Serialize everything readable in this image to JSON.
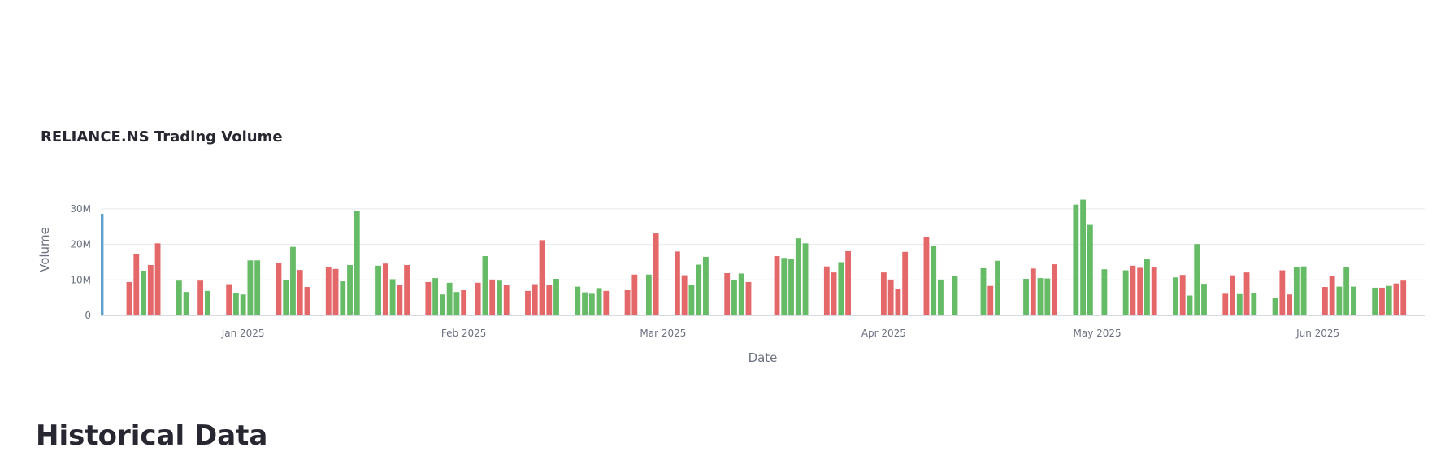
{
  "heading": "Historical Data",
  "colors": {
    "up": "#66bb66",
    "down": "#e46869",
    "first": "#5fa2ce",
    "grid": "#e8eaee",
    "axis": "#d6dae1"
  },
  "chart_data": {
    "type": "bar",
    "title": "RELIANCE.NS Trading Volume",
    "xlabel": "Date",
    "ylabel": "Volume",
    "ylim": [
      0,
      32500000
    ],
    "xlim": [
      "2024-12-12",
      "2025-06-16"
    ],
    "yticks": [
      {
        "value": 0,
        "label": "0"
      },
      {
        "value": 10000000,
        "label": "10M"
      },
      {
        "value": 20000000,
        "label": "20M"
      },
      {
        "value": 30000000,
        "label": "30M"
      }
    ],
    "xticks": [
      {
        "date": "2025-01-01",
        "label": "Jan 2025"
      },
      {
        "date": "2025-02-01",
        "label": "Feb 2025"
      },
      {
        "date": "2025-03-01",
        "label": "Mar 2025"
      },
      {
        "date": "2025-04-01",
        "label": "Apr 2025"
      },
      {
        "date": "2025-05-01",
        "label": "May 2025"
      },
      {
        "date": "2025-06-01",
        "label": "Jun 2025"
      }
    ],
    "grid": true,
    "legend": "none",
    "bars": [
      {
        "date": "2024-12-12",
        "value": 28600000,
        "dir": "first"
      },
      {
        "date": "2024-12-16",
        "value": 9400000,
        "dir": "down"
      },
      {
        "date": "2024-12-17",
        "value": 17400000,
        "dir": "down"
      },
      {
        "date": "2024-12-18",
        "value": 12600000,
        "dir": "up"
      },
      {
        "date": "2024-12-19",
        "value": 14200000,
        "dir": "down"
      },
      {
        "date": "2024-12-20",
        "value": 20300000,
        "dir": "down"
      },
      {
        "date": "2024-12-23",
        "value": 9800000,
        "dir": "up"
      },
      {
        "date": "2024-12-24",
        "value": 6600000,
        "dir": "up"
      },
      {
        "date": "2024-12-26",
        "value": 9800000,
        "dir": "down"
      },
      {
        "date": "2024-12-27",
        "value": 6900000,
        "dir": "up"
      },
      {
        "date": "2024-12-30",
        "value": 8800000,
        "dir": "down"
      },
      {
        "date": "2024-12-31",
        "value": 6300000,
        "dir": "up"
      },
      {
        "date": "2025-01-01",
        "value": 5900000,
        "dir": "up"
      },
      {
        "date": "2025-01-02",
        "value": 15500000,
        "dir": "up"
      },
      {
        "date": "2025-01-03",
        "value": 15500000,
        "dir": "up"
      },
      {
        "date": "2025-01-06",
        "value": 14800000,
        "dir": "down"
      },
      {
        "date": "2025-01-07",
        "value": 10000000,
        "dir": "up"
      },
      {
        "date": "2025-01-08",
        "value": 19300000,
        "dir": "up"
      },
      {
        "date": "2025-01-09",
        "value": 12800000,
        "dir": "down"
      },
      {
        "date": "2025-01-10",
        "value": 8000000,
        "dir": "down"
      },
      {
        "date": "2025-01-13",
        "value": 13700000,
        "dir": "down"
      },
      {
        "date": "2025-01-14",
        "value": 13100000,
        "dir": "down"
      },
      {
        "date": "2025-01-15",
        "value": 9600000,
        "dir": "up"
      },
      {
        "date": "2025-01-16",
        "value": 14200000,
        "dir": "up"
      },
      {
        "date": "2025-01-17",
        "value": 29400000,
        "dir": "up"
      },
      {
        "date": "2025-01-20",
        "value": 14000000,
        "dir": "up"
      },
      {
        "date": "2025-01-21",
        "value": 14600000,
        "dir": "down"
      },
      {
        "date": "2025-01-22",
        "value": 10200000,
        "dir": "up"
      },
      {
        "date": "2025-01-23",
        "value": 8600000,
        "dir": "down"
      },
      {
        "date": "2025-01-24",
        "value": 14200000,
        "dir": "down"
      },
      {
        "date": "2025-01-27",
        "value": 9400000,
        "dir": "down"
      },
      {
        "date": "2025-01-28",
        "value": 10500000,
        "dir": "up"
      },
      {
        "date": "2025-01-29",
        "value": 5900000,
        "dir": "up"
      },
      {
        "date": "2025-01-30",
        "value": 9200000,
        "dir": "up"
      },
      {
        "date": "2025-01-31",
        "value": 6600000,
        "dir": "up"
      },
      {
        "date": "2025-02-01",
        "value": 7100000,
        "dir": "down"
      },
      {
        "date": "2025-02-03",
        "value": 9200000,
        "dir": "down"
      },
      {
        "date": "2025-02-04",
        "value": 16700000,
        "dir": "up"
      },
      {
        "date": "2025-02-05",
        "value": 10100000,
        "dir": "down"
      },
      {
        "date": "2025-02-06",
        "value": 9800000,
        "dir": "up"
      },
      {
        "date": "2025-02-07",
        "value": 8700000,
        "dir": "down"
      },
      {
        "date": "2025-02-10",
        "value": 6900000,
        "dir": "down"
      },
      {
        "date": "2025-02-11",
        "value": 8800000,
        "dir": "down"
      },
      {
        "date": "2025-02-12",
        "value": 21200000,
        "dir": "down"
      },
      {
        "date": "2025-02-13",
        "value": 8500000,
        "dir": "down"
      },
      {
        "date": "2025-02-14",
        "value": 10300000,
        "dir": "up"
      },
      {
        "date": "2025-02-17",
        "value": 8100000,
        "dir": "up"
      },
      {
        "date": "2025-02-18",
        "value": 6500000,
        "dir": "up"
      },
      {
        "date": "2025-02-19",
        "value": 6100000,
        "dir": "up"
      },
      {
        "date": "2025-02-20",
        "value": 7700000,
        "dir": "up"
      },
      {
        "date": "2025-02-21",
        "value": 6900000,
        "dir": "down"
      },
      {
        "date": "2025-02-24",
        "value": 7100000,
        "dir": "down"
      },
      {
        "date": "2025-02-25",
        "value": 11500000,
        "dir": "down"
      },
      {
        "date": "2025-02-27",
        "value": 11500000,
        "dir": "up"
      },
      {
        "date": "2025-02-28",
        "value": 23100000,
        "dir": "down"
      },
      {
        "date": "2025-03-03",
        "value": 18000000,
        "dir": "down"
      },
      {
        "date": "2025-03-04",
        "value": 11300000,
        "dir": "down"
      },
      {
        "date": "2025-03-05",
        "value": 8700000,
        "dir": "up"
      },
      {
        "date": "2025-03-06",
        "value": 14300000,
        "dir": "up"
      },
      {
        "date": "2025-03-07",
        "value": 16500000,
        "dir": "up"
      },
      {
        "date": "2025-03-10",
        "value": 11900000,
        "dir": "down"
      },
      {
        "date": "2025-03-11",
        "value": 10000000,
        "dir": "up"
      },
      {
        "date": "2025-03-12",
        "value": 11800000,
        "dir": "up"
      },
      {
        "date": "2025-03-13",
        "value": 9400000,
        "dir": "down"
      },
      {
        "date": "2025-03-17",
        "value": 16700000,
        "dir": "down"
      },
      {
        "date": "2025-03-18",
        "value": 16200000,
        "dir": "up"
      },
      {
        "date": "2025-03-19",
        "value": 16000000,
        "dir": "up"
      },
      {
        "date": "2025-03-20",
        "value": 21700000,
        "dir": "up"
      },
      {
        "date": "2025-03-21",
        "value": 20300000,
        "dir": "up"
      },
      {
        "date": "2025-03-24",
        "value": 13800000,
        "dir": "down"
      },
      {
        "date": "2025-03-25",
        "value": 12100000,
        "dir": "down"
      },
      {
        "date": "2025-03-26",
        "value": 15000000,
        "dir": "up"
      },
      {
        "date": "2025-03-27",
        "value": 18100000,
        "dir": "down"
      },
      {
        "date": "2025-04-01",
        "value": 12100000,
        "dir": "down"
      },
      {
        "date": "2025-04-02",
        "value": 10100000,
        "dir": "down"
      },
      {
        "date": "2025-04-03",
        "value": 7400000,
        "dir": "down"
      },
      {
        "date": "2025-04-04",
        "value": 17900000,
        "dir": "down"
      },
      {
        "date": "2025-04-07",
        "value": 22200000,
        "dir": "down"
      },
      {
        "date": "2025-04-08",
        "value": 19500000,
        "dir": "up"
      },
      {
        "date": "2025-04-09",
        "value": 10100000,
        "dir": "up"
      },
      {
        "date": "2025-04-11",
        "value": 11200000,
        "dir": "up"
      },
      {
        "date": "2025-04-15",
        "value": 13300000,
        "dir": "up"
      },
      {
        "date": "2025-04-16",
        "value": 8300000,
        "dir": "down"
      },
      {
        "date": "2025-04-17",
        "value": 15400000,
        "dir": "up"
      },
      {
        "date": "2025-04-21",
        "value": 10300000,
        "dir": "up"
      },
      {
        "date": "2025-04-22",
        "value": 13200000,
        "dir": "down"
      },
      {
        "date": "2025-04-23",
        "value": 10500000,
        "dir": "up"
      },
      {
        "date": "2025-04-24",
        "value": 10400000,
        "dir": "up"
      },
      {
        "date": "2025-04-25",
        "value": 14400000,
        "dir": "down"
      },
      {
        "date": "2025-04-28",
        "value": 31200000,
        "dir": "up"
      },
      {
        "date": "2025-04-29",
        "value": 32600000,
        "dir": "up"
      },
      {
        "date": "2025-04-30",
        "value": 25500000,
        "dir": "up"
      },
      {
        "date": "2025-05-02",
        "value": 13000000,
        "dir": "up"
      },
      {
        "date": "2025-05-05",
        "value": 12700000,
        "dir": "up"
      },
      {
        "date": "2025-05-06",
        "value": 14000000,
        "dir": "down"
      },
      {
        "date": "2025-05-07",
        "value": 13400000,
        "dir": "down"
      },
      {
        "date": "2025-05-08",
        "value": 16000000,
        "dir": "up"
      },
      {
        "date": "2025-05-09",
        "value": 13600000,
        "dir": "down"
      },
      {
        "date": "2025-05-12",
        "value": 10700000,
        "dir": "up"
      },
      {
        "date": "2025-05-13",
        "value": 11400000,
        "dir": "down"
      },
      {
        "date": "2025-05-14",
        "value": 5600000,
        "dir": "up"
      },
      {
        "date": "2025-05-15",
        "value": 20100000,
        "dir": "up"
      },
      {
        "date": "2025-05-16",
        "value": 8900000,
        "dir": "up"
      },
      {
        "date": "2025-05-19",
        "value": 6100000,
        "dir": "down"
      },
      {
        "date": "2025-05-20",
        "value": 11300000,
        "dir": "down"
      },
      {
        "date": "2025-05-21",
        "value": 6000000,
        "dir": "up"
      },
      {
        "date": "2025-05-22",
        "value": 12100000,
        "dir": "down"
      },
      {
        "date": "2025-05-23",
        "value": 6300000,
        "dir": "up"
      },
      {
        "date": "2025-05-26",
        "value": 4900000,
        "dir": "up"
      },
      {
        "date": "2025-05-27",
        "value": 12700000,
        "dir": "down"
      },
      {
        "date": "2025-05-28",
        "value": 5900000,
        "dir": "down"
      },
      {
        "date": "2025-05-29",
        "value": 13700000,
        "dir": "up"
      },
      {
        "date": "2025-05-30",
        "value": 13800000,
        "dir": "up"
      },
      {
        "date": "2025-06-02",
        "value": 8000000,
        "dir": "down"
      },
      {
        "date": "2025-06-03",
        "value": 11200000,
        "dir": "down"
      },
      {
        "date": "2025-06-04",
        "value": 8100000,
        "dir": "up"
      },
      {
        "date": "2025-06-05",
        "value": 13700000,
        "dir": "up"
      },
      {
        "date": "2025-06-06",
        "value": 8100000,
        "dir": "up"
      },
      {
        "date": "2025-06-09",
        "value": 7800000,
        "dir": "up"
      },
      {
        "date": "2025-06-10",
        "value": 7800000,
        "dir": "down"
      },
      {
        "date": "2025-06-11",
        "value": 8300000,
        "dir": "up"
      },
      {
        "date": "2025-06-12",
        "value": 9000000,
        "dir": "down"
      },
      {
        "date": "2025-06-13",
        "value": 9800000,
        "dir": "down"
      }
    ]
  }
}
